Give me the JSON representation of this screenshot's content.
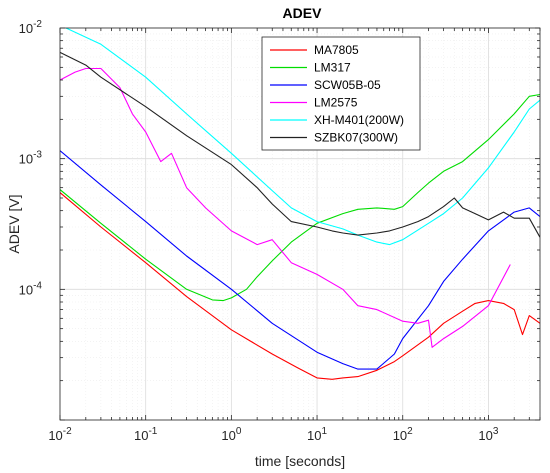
{
  "chart_data": {
    "type": "line",
    "title": "ADEV",
    "xlabel": "time [seconds]",
    "ylabel": "ADEV [V]",
    "xscale": "log",
    "yscale": "log",
    "xlim": [
      0.01,
      4000
    ],
    "ylim": [
      1e-05,
      0.01
    ],
    "x_ticks": [
      {
        "value": 0.01,
        "base": "10",
        "exp": "-2"
      },
      {
        "value": 0.1,
        "base": "10",
        "exp": "-1"
      },
      {
        "value": 1,
        "base": "10",
        "exp": "0"
      },
      {
        "value": 10,
        "base": "10",
        "exp": "1"
      },
      {
        "value": 100,
        "base": "10",
        "exp": "2"
      },
      {
        "value": 1000,
        "base": "10",
        "exp": "3"
      }
    ],
    "y_ticks": [
      {
        "value": 0.0001,
        "base": "10",
        "exp": "-4"
      },
      {
        "value": 0.001,
        "base": "10",
        "exp": "-3"
      },
      {
        "value": 0.01,
        "base": "10",
        "exp": "-2"
      }
    ],
    "grid": true,
    "minor_grid": true,
    "legend_position": "top-right",
    "series": [
      {
        "name": "MA7805",
        "color": "#ff0000",
        "x": [
          0.01,
          0.03,
          0.1,
          0.3,
          1,
          3,
          6,
          10,
          15,
          20,
          30,
          50,
          80,
          100,
          200,
          300,
          500,
          700,
          1000,
          1500,
          2000,
          2500,
          3000,
          4000
        ],
        "y": [
          0.00055,
          0.0003,
          0.00016,
          8.8e-05,
          4.9e-05,
          3.2e-05,
          2.5e-05,
          2.1e-05,
          2.05e-05,
          2.1e-05,
          2.15e-05,
          2.4e-05,
          2.8e-05,
          3.1e-05,
          4.3e-05,
          5.5e-05,
          6.8e-05,
          7.8e-05,
          8.2e-05,
          7.8e-05,
          7e-05,
          4.5e-05,
          6.3e-05,
          5.5e-05
        ]
      },
      {
        "name": "LM317",
        "color": "#00dd00",
        "x": [
          0.01,
          0.03,
          0.1,
          0.3,
          0.6,
          0.8,
          1,
          1.5,
          2,
          3,
          5,
          10,
          20,
          30,
          50,
          80,
          100,
          150,
          200,
          300,
          500,
          1000,
          2000,
          3000,
          4000
        ],
        "y": [
          0.00058,
          0.00032,
          0.00017,
          0.0001,
          8.3e-05,
          8.2e-05,
          8.6e-05,
          0.0001,
          0.000125,
          0.000165,
          0.00023,
          0.00032,
          0.00038,
          0.00041,
          0.00042,
          0.00041,
          0.00043,
          0.00055,
          0.00065,
          0.0008,
          0.00095,
          0.0014,
          0.0022,
          0.003,
          0.0031
        ]
      },
      {
        "name": "SCW05B-05",
        "color": "#0000ff",
        "x": [
          0.01,
          0.03,
          0.1,
          0.3,
          1,
          3,
          10,
          20,
          30,
          50,
          80,
          100,
          200,
          300,
          500,
          1000,
          2000,
          3000,
          4000
        ],
        "y": [
          0.00115,
          0.00063,
          0.00033,
          0.00018,
          0.0001,
          5.5e-05,
          3.3e-05,
          2.7e-05,
          2.45e-05,
          2.45e-05,
          3.2e-05,
          4.2e-05,
          7.5e-05,
          0.000115,
          0.00017,
          0.00028,
          0.00039,
          0.00042,
          0.00036
        ]
      },
      {
        "name": "LM2575",
        "color": "#ff00ff",
        "x": [
          0.01,
          0.015,
          0.02,
          0.03,
          0.05,
          0.07,
          0.1,
          0.15,
          0.2,
          0.3,
          0.5,
          1,
          2,
          3,
          5,
          10,
          20,
          30,
          50,
          100,
          150,
          200,
          220,
          300,
          500,
          1000,
          1800
        ],
        "y": [
          0.004,
          0.0046,
          0.0049,
          0.0049,
          0.0035,
          0.0022,
          0.0016,
          0.00095,
          0.0011,
          0.0006,
          0.00042,
          0.00028,
          0.00022,
          0.00024,
          0.00016,
          0.00013,
          0.0001,
          7.5e-05,
          7e-05,
          5.7e-05,
          5.5e-05,
          5.8e-05,
          3.6e-05,
          4.2e-05,
          5.2e-05,
          7.5e-05,
          0.000155
        ]
      },
      {
        "name": "XH-M401(200W)",
        "color": "#00ffff",
        "x": [
          0.01,
          0.03,
          0.1,
          0.3,
          1,
          3,
          5,
          10,
          20,
          30,
          50,
          70,
          100,
          200,
          300,
          500,
          1000,
          2000,
          3000,
          4000
        ],
        "y": [
          0.0105,
          0.0075,
          0.0042,
          0.0022,
          0.0011,
          0.00057,
          0.00042,
          0.00033,
          0.00029,
          0.00026,
          0.00023,
          0.00022,
          0.00024,
          0.00032,
          0.00038,
          0.0005,
          0.00085,
          0.0016,
          0.0024,
          0.0028
        ]
      },
      {
        "name": "SZBK07(300W)",
        "color": "#222222",
        "x": [
          0.01,
          0.02,
          0.03,
          0.1,
          0.3,
          1,
          2,
          3,
          5,
          10,
          15,
          20,
          30,
          50,
          70,
          100,
          150,
          200,
          300,
          400,
          500,
          700,
          1000,
          1500,
          2000,
          3000,
          4000
        ],
        "y": [
          0.0065,
          0.0052,
          0.0042,
          0.0025,
          0.0015,
          0.0009,
          0.0006,
          0.00045,
          0.00033,
          0.0003,
          0.00028,
          0.00027,
          0.00026,
          0.00027,
          0.00028,
          0.0003,
          0.00033,
          0.00036,
          0.00043,
          0.0005,
          0.00042,
          0.00038,
          0.00034,
          0.00039,
          0.00035,
          0.00035,
          0.00025
        ]
      }
    ]
  }
}
